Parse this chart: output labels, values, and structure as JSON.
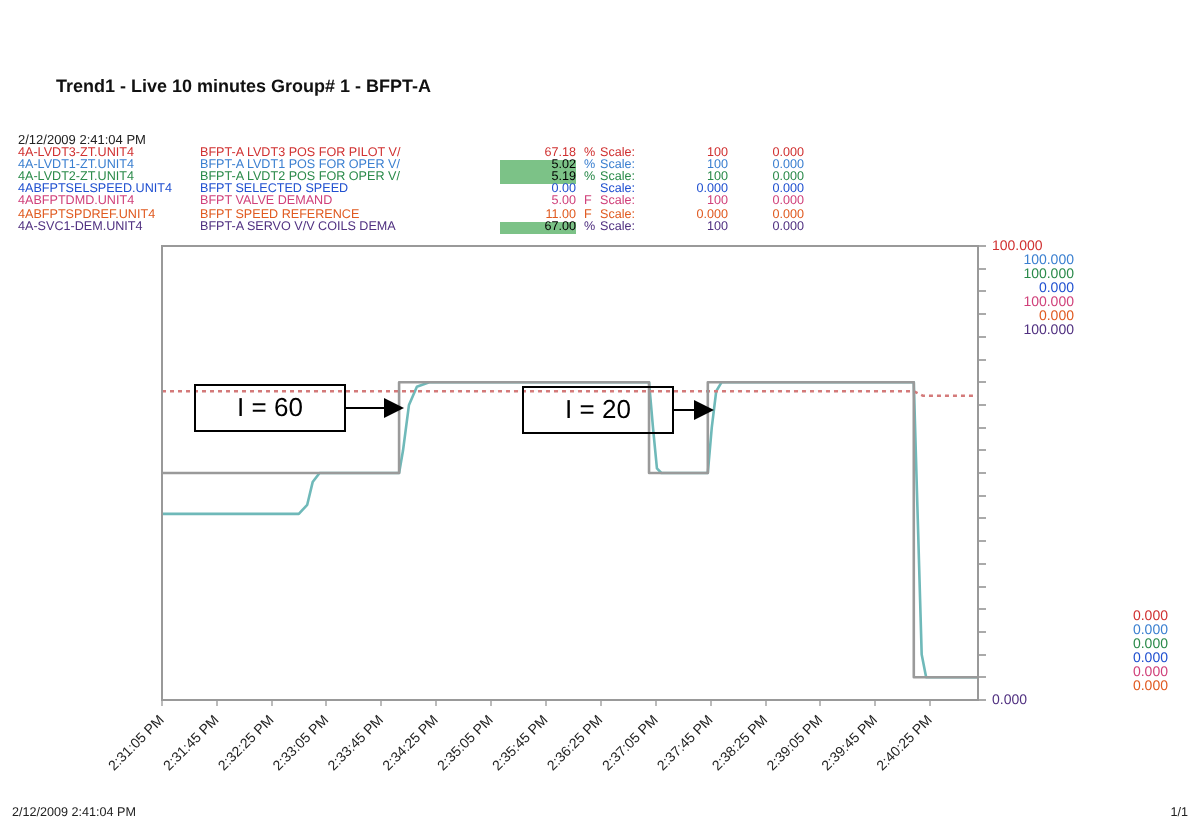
{
  "chart_data": {
    "type": "line",
    "title": "Trend1 - Live 10 minutes Group# 1 - BFPT-A",
    "subtitle": "2/12/2009 2:41:04 PM",
    "annotations": [
      "4A-LVDT3-ZT.UNIT4",
      "BFPT-A LVDT3 POS FOR PILOT V/",
      "67.18",
      "%",
      "Scale:",
      "100",
      "0.000",
      "4A-LVDT1-ZT.UNIT4",
      "BFPT-A LVDT1 POS FOR OPER V/",
      "5.02",
      "%",
      "Scale:",
      "100",
      "0.000",
      "4A-LVDT2-ZT.UNIT4",
      "BFPT-A LVDT2 POS FOR OPER V/",
      "5.19",
      "%",
      "Scale:",
      "100",
      "0.000",
      "4ABFPTSELSPEED.UNIT4",
      "BFPT SELECTED SPEED",
      "0.00",
      null,
      "Scale:",
      "0.000",
      "0.000",
      "4ABFPTDMD.UNIT4",
      "BFPT VALVE DEMAND",
      "5.00",
      "F",
      "Scale:",
      "100",
      "0.000",
      "4ABFPTSPDREF.UNIT4",
      "BFPT SPEED REFERENCE",
      "11.00",
      "F",
      "Scale:",
      "0.000",
      "0.000",
      "4A-SVC1-DEM.UNIT4",
      "BFPT-A SERVO V/V COILS DEMA",
      "67.00",
      "%",
      "Scale:",
      "100",
      "0.000",
      "100.000",
      "100.000",
      "0.000",
      "100.000",
      "0.000",
      "100.000",
      "0.000",
      "0.000",
      "0.000",
      "0.000",
      "0.000",
      "0.000",
      "2/12/2009 2:41:04 PM",
      "1/1",
      "I = 60",
      "I = 20"
    ],
    "xlim": [
      14.5181,
      14.6833
    ],
    "xticks": [
      {
        "value": 14.5181,
        "label": "2:31:05 PM"
      },
      {
        "value": 14.5292,
        "label": "2:31:45 PM"
      },
      {
        "value": 14.5403,
        "label": "2:32:25 PM"
      },
      {
        "value": 14.5514,
        "label": "2:33:05 PM"
      },
      {
        "value": 14.5625,
        "label": "2:33:45 PM"
      },
      {
        "value": 14.5736,
        "label": "2:34:25 PM"
      },
      {
        "value": 14.5847,
        "label": "2:35:05 PM"
      },
      {
        "value": 14.5958,
        "label": "2:35:45 PM"
      },
      {
        "value": 14.6069,
        "label": "2:36:25 PM"
      },
      {
        "value": 14.6181,
        "label": "2:37:05 PM"
      },
      {
        "value": 14.6292,
        "label": "2:37:45 PM"
      },
      {
        "value": 14.6403,
        "label": "2:38:25 PM"
      },
      {
        "value": 14.6514,
        "label": "2:39:05 PM"
      },
      {
        "value": 14.6625,
        "label": "2:39:45 PM"
      },
      {
        "value": 14.6736,
        "label": "2:40:25 PM"
      }
    ],
    "ylim": [
      0,
      100
    ],
    "yticks": [
      {
        "value": 0,
        "label": "0.000"
      },
      {
        "value": 5,
        "label": null
      },
      {
        "value": 10,
        "label": null
      },
      {
        "value": 15,
        "label": null
      },
      {
        "value": 20,
        "label": null
      },
      {
        "value": 25,
        "label": null
      },
      {
        "value": 30,
        "label": null
      },
      {
        "value": 35,
        "label": null
      },
      {
        "value": 40,
        "label": null
      },
      {
        "value": 45,
        "label": null
      },
      {
        "value": 50,
        "label": null
      },
      {
        "value": 55,
        "label": null
      },
      {
        "value": 60,
        "label": null
      },
      {
        "value": 65,
        "label": null
      },
      {
        "value": 70,
        "label": null
      },
      {
        "value": 75,
        "label": null
      },
      {
        "value": 80,
        "label": null
      },
      {
        "value": 85,
        "label": null
      },
      {
        "value": 90,
        "label": null
      },
      {
        "value": 95,
        "label": null
      },
      {
        "value": 100,
        "label": "100.000"
      }
    ],
    "grid": false,
    "legend": false,
    "marker": "none",
    "series": [
      {
        "color": "#9a9a9a",
        "line_style": "solid",
        "x": [
          14.5181,
          14.5661,
          14.5661,
          14.6167,
          14.6167,
          14.6286,
          14.6286,
          14.6703,
          14.6703,
          14.6833
        ],
        "values": [
          50,
          50,
          70,
          70,
          50,
          50,
          70,
          70,
          5,
          5
        ]
      },
      {
        "color": "#d47a7a",
        "line_style": "dotted",
        "x": [
          14.5181,
          14.6703,
          14.6722,
          14.6833
        ],
        "values": [
          68,
          68,
          67,
          67
        ]
      },
      {
        "color": "#6fb9b9",
        "line_style": "solid",
        "x": [
          14.5181,
          14.5458,
          14.5475,
          14.5486,
          14.55,
          14.5661,
          14.5669,
          14.5681,
          14.5697,
          14.5722,
          14.6167,
          14.6175,
          14.6183,
          14.6192,
          14.6286,
          14.6294,
          14.6303,
          14.6314,
          14.6703,
          14.6711,
          14.6719,
          14.6728,
          14.6833
        ],
        "values": [
          41,
          41,
          43,
          48,
          50,
          50,
          55,
          65,
          69,
          70,
          70,
          60,
          51,
          50,
          50,
          60,
          68,
          70,
          70,
          40,
          10,
          5,
          5
        ]
      }
    ]
  }
}
